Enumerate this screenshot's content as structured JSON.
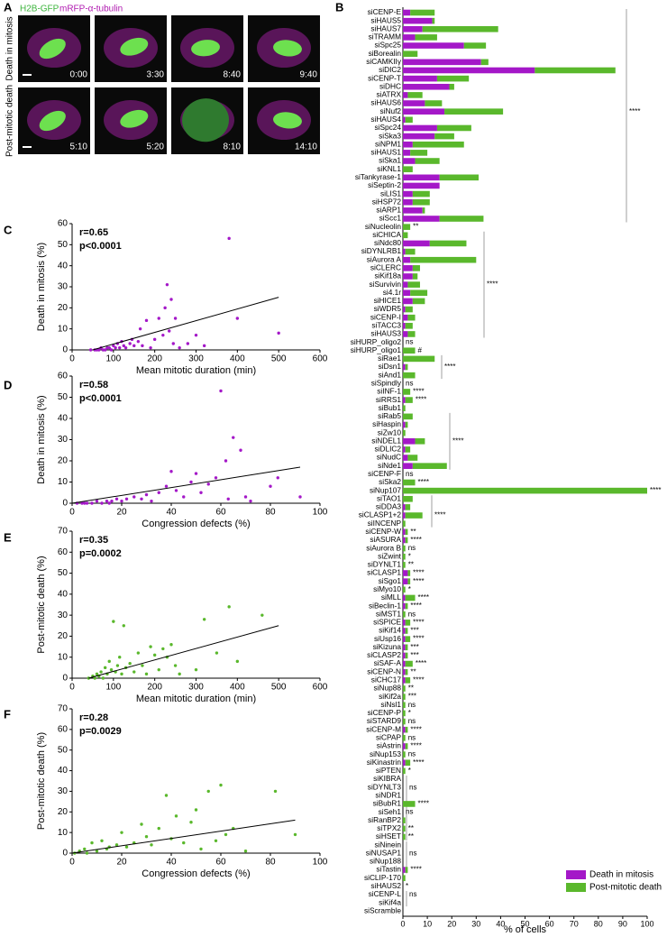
{
  "panel_labels": [
    "A",
    "B",
    "C",
    "D",
    "E",
    "F"
  ],
  "panel_a": {
    "channels": [
      "H2B-GFP",
      "mRFP-α-tubulin"
    ],
    "rows": [
      {
        "label": "Death in mitosis",
        "times": [
          "0:00",
          "3:30",
          "8:40",
          "9:40"
        ]
      },
      {
        "label": "Post-mitotic death",
        "times": [
          "5:10",
          "5:20",
          "8:10",
          "14:10"
        ]
      }
    ]
  },
  "chart_data": [
    {
      "type": "bar",
      "orientation": "horizontal",
      "stacked": true,
      "xlabel": "% of cells",
      "xlim": [
        0,
        100
      ],
      "xticks": [
        0,
        10,
        20,
        30,
        40,
        50,
        60,
        70,
        80,
        90,
        100
      ],
      "legend": "bottom-right",
      "categories": [
        "siCENP-E",
        "siHAUS5",
        "siHAUS7",
        "siTRAMM",
        "siSpc25",
        "siBorealin",
        "siCAMKIIγ",
        "siDIC2",
        "siCENP-T",
        "siDHC",
        "siATRX",
        "siHAUS6",
        "siNuf2",
        "siHAUS4",
        "siSpc24",
        "siSka3",
        "siNPM1",
        "siHAUS1",
        "siSka1",
        "siKNL1",
        "siTankyrase-1",
        "siSeptin-2",
        "siLIS1",
        "siHSP72",
        "siARP1",
        "siScc1",
        "siNucleolin",
        "siCHICA",
        "siNdc80",
        "siDYNLRB1",
        "siAurora A",
        "siCLERC",
        "siKif18a",
        "siSurvivin",
        "si4.1r",
        "siHICE1",
        "siWDR5",
        "siCENP-I",
        "siTACC3",
        "siHAUS3",
        "siHURP_oligo2",
        "siHURP_oligo1",
        "siRae1",
        "siDsn1",
        "siAnd1",
        "siSpindly",
        "siINF-1",
        "siRRS1",
        "siBub1",
        "siRab5",
        "siHaspin",
        "siZw10",
        "siNDEL1",
        "siDLIC2",
        "siNudC",
        "siNde1",
        "siCENP-F",
        "siSka2",
        "siNup107",
        "siTAO1",
        "siDDA3",
        "siCLASP1+2",
        "siINCENP",
        "siCENP-W",
        "siASURA",
        "siAurora B",
        "siZwint",
        "siDYNLT1",
        "siCLASP1",
        "siSgo1",
        "siMyo10",
        "siMLL",
        "siBeclin-1",
        "siMST1",
        "siSPICE",
        "siKif14",
        "siUsp16",
        "siKizuna",
        "siCLASP2",
        "siSAF-A",
        "siCENP-N",
        "siCHC17",
        "siNup88",
        "siKif2a",
        "siNsl1",
        "siCENP-P",
        "siSTARD9",
        "siCENP-M",
        "siCPAP",
        "siAstrin",
        "siNup153",
        "siKinastrin",
        "siPTEN",
        "siKIBRA",
        "siDYNLT3",
        "siNDR1",
        "siBubR1",
        "siSeh1",
        "siRanBP2",
        "siTPX2",
        "siHSET",
        "siNinein",
        "siNUSAP1",
        "siNup188",
        "siTastin",
        "siCLIP-170",
        "siHAUS2",
        "siCENP-L",
        "siKif4a",
        "siScramble"
      ],
      "series": [
        {
          "name": "Death in mitosis",
          "color": "#a418c8",
          "values": [
            3,
            12,
            8,
            5,
            25,
            0,
            32,
            54,
            14,
            19,
            2,
            9,
            17,
            1,
            14,
            13,
            4,
            3,
            5,
            0,
            15,
            15,
            4,
            4,
            8,
            15,
            0,
            0,
            11,
            1,
            3,
            4,
            4,
            2,
            3,
            4,
            1,
            2,
            1,
            2,
            0,
            0,
            0,
            1,
            0,
            0,
            0,
            1,
            0,
            0,
            1,
            0,
            5,
            1,
            2,
            4,
            0,
            0,
            0,
            0,
            1,
            1,
            0,
            1,
            1,
            0,
            0,
            0,
            2,
            2,
            0,
            1,
            1,
            0,
            1,
            1,
            1,
            1,
            1,
            1,
            1,
            1,
            0,
            0,
            0,
            0,
            0,
            1,
            0,
            1,
            0,
            1,
            0,
            0,
            0,
            0,
            0,
            0,
            0,
            0,
            0,
            0,
            0,
            0,
            1,
            0,
            0,
            0,
            0,
            0
          ]
        },
        {
          "name": "Post-mitotic death",
          "color": "#5ab82c",
          "values": [
            10,
            1,
            31,
            9,
            9,
            6,
            3,
            33,
            13,
            2,
            6,
            7,
            24,
            3,
            14,
            8,
            21,
            7,
            10,
            4,
            16,
            0,
            7,
            7,
            1,
            18,
            3,
            2,
            15,
            4,
            27,
            3,
            2,
            5,
            7,
            5,
            3,
            3,
            3,
            3,
            0,
            5,
            13,
            1,
            5,
            0,
            3,
            3,
            1,
            4,
            1,
            1,
            4,
            2,
            4,
            14,
            0,
            5,
            100,
            4,
            2,
            7,
            1,
            1,
            1,
            1,
            1,
            1,
            1,
            1,
            1,
            4,
            1,
            1,
            2,
            1,
            2,
            1,
            1,
            3,
            1,
            2,
            1,
            1,
            1,
            1,
            1,
            1,
            1,
            1,
            1,
            2,
            1,
            0,
            0,
            0,
            5,
            0,
            1,
            1,
            1,
            0,
            0,
            0,
            1,
            1,
            0,
            0,
            0,
            0
          ]
        }
      ],
      "annotations": [
        null,
        null,
        null,
        null,
        null,
        null,
        null,
        null,
        null,
        null,
        null,
        null,
        "****",
        null,
        null,
        null,
        null,
        null,
        null,
        null,
        null,
        null,
        null,
        null,
        null,
        null,
        "**",
        null,
        null,
        null,
        null,
        null,
        null,
        "****",
        null,
        null,
        null,
        null,
        null,
        null,
        "ns",
        "#",
        null,
        "****",
        null,
        "ns",
        "****",
        "****",
        null,
        null,
        null,
        null,
        "****",
        null,
        null,
        null,
        "ns",
        "****",
        "****",
        null,
        null,
        "****",
        null,
        "**",
        "****",
        "ns",
        "*",
        "**",
        "****",
        "****",
        "*",
        "****",
        "****",
        "ns",
        "****",
        "***",
        "****",
        "***",
        "***",
        "****",
        "**",
        "****",
        "**",
        "***",
        "ns",
        "*",
        "ns",
        "****",
        "ns",
        "****",
        "ns",
        "****",
        "*",
        null,
        "ns",
        null,
        "****",
        "ns",
        null,
        "**",
        "**",
        null,
        "ns",
        null,
        "****",
        null,
        "*",
        "ns",
        null,
        null
      ]
    },
    {
      "type": "scatter",
      "xlabel": "Mean mitotic duration (min)",
      "ylabel": "Death in mitosis (%)",
      "annotations": [
        "r=0.65",
        "p<0.0001"
      ],
      "color": "#a418c8",
      "x": [
        45,
        55,
        60,
        65,
        70,
        75,
        80,
        85,
        90,
        95,
        100,
        105,
        110,
        115,
        120,
        125,
        130,
        140,
        145,
        150,
        160,
        165,
        170,
        180,
        190,
        200,
        210,
        220,
        225,
        230,
        235,
        240,
        245,
        250,
        260,
        280,
        300,
        320,
        380,
        400,
        500
      ],
      "values": [
        0,
        0,
        0,
        0,
        1,
        0,
        0,
        1,
        1,
        0,
        2,
        1,
        3,
        1,
        4,
        2,
        1,
        3,
        5,
        2,
        4,
        10,
        2,
        14,
        1,
        5,
        15,
        7,
        20,
        31,
        9,
        24,
        3,
        15,
        1,
        3,
        7,
        2,
        53,
        15,
        8
      ],
      "fit": {
        "x": [
          50,
          500
        ],
        "values": [
          0,
          25
        ]
      },
      "xlim": [
        0,
        600
      ],
      "ylim": [
        0,
        60
      ],
      "xticks": [
        0,
        100,
        200,
        300,
        400,
        500,
        600
      ],
      "yticks": [
        0,
        10,
        20,
        30,
        40,
        50,
        60
      ]
    },
    {
      "type": "scatter",
      "xlabel": "Congression defects (%)",
      "ylabel": "Death in mitosis (%)",
      "annotations": [
        "r=0.58",
        "p<0.0001"
      ],
      "color": "#a418c8",
      "x": [
        2,
        4,
        5,
        6,
        8,
        10,
        12,
        14,
        15,
        16,
        18,
        20,
        22,
        25,
        28,
        30,
        32,
        35,
        38,
        40,
        42,
        45,
        48,
        50,
        52,
        55,
        58,
        60,
        62,
        63,
        65,
        68,
        70,
        72,
        80,
        83,
        92
      ],
      "values": [
        0,
        0,
        0,
        0,
        0,
        1,
        0,
        1,
        0,
        1,
        2,
        1,
        2,
        3,
        2,
        4,
        1,
        5,
        8,
        15,
        6,
        3,
        10,
        14,
        5,
        9,
        12,
        53,
        20,
        2,
        31,
        25,
        3,
        1,
        8,
        12,
        3
      ],
      "fit": {
        "x": [
          0,
          92
        ],
        "values": [
          0,
          17
        ]
      },
      "xlim": [
        0,
        100
      ],
      "ylim": [
        0,
        60
      ],
      "xticks": [
        0,
        20,
        40,
        60,
        80,
        100
      ],
      "yticks": [
        0,
        10,
        20,
        30,
        40,
        50,
        60
      ]
    },
    {
      "type": "scatter",
      "xlabel": "Mean mitotic duration (min)",
      "ylabel": "Post-mitotic death (%)",
      "annotations": [
        "r=0.35",
        "p=0.0002"
      ],
      "color": "#5ab82c",
      "x": [
        40,
        50,
        55,
        60,
        65,
        70,
        75,
        80,
        85,
        90,
        95,
        100,
        105,
        110,
        115,
        120,
        125,
        130,
        140,
        150,
        160,
        170,
        180,
        190,
        200,
        210,
        220,
        230,
        240,
        250,
        260,
        300,
        320,
        350,
        380,
        400,
        460
      ],
      "values": [
        0,
        1,
        0,
        2,
        1,
        3,
        0,
        5,
        2,
        8,
        4,
        27,
        3,
        6,
        10,
        2,
        25,
        5,
        7,
        3,
        12,
        6,
        2,
        15,
        11,
        4,
        14,
        10,
        16,
        6,
        2,
        4,
        28,
        12,
        34,
        8,
        30
      ],
      "fit": {
        "x": [
          40,
          500
        ],
        "values": [
          0,
          25
        ]
      },
      "xlim": [
        0,
        600
      ],
      "ylim": [
        0,
        70
      ],
      "xticks": [
        0,
        100,
        200,
        300,
        400,
        500,
        600
      ],
      "yticks": [
        0,
        10,
        20,
        30,
        40,
        50,
        60,
        70
      ]
    },
    {
      "type": "scatter",
      "xlabel": "Congression defects (%)",
      "ylabel": "Post-mitotic death (%)",
      "annotations": [
        "r=0.28",
        "p=0.0029"
      ],
      "color": "#5ab82c",
      "x": [
        1,
        3,
        5,
        6,
        8,
        10,
        12,
        14,
        15,
        18,
        20,
        22,
        25,
        28,
        30,
        32,
        35,
        38,
        40,
        42,
        45,
        48,
        50,
        52,
        55,
        58,
        60,
        62,
        65,
        70,
        82,
        90
      ],
      "values": [
        0,
        1,
        2,
        0,
        5,
        1,
        6,
        2,
        3,
        4,
        10,
        3,
        5,
        14,
        8,
        4,
        12,
        28,
        7,
        18,
        5,
        15,
        21,
        2,
        30,
        6,
        33,
        9,
        12,
        1,
        30,
        9
      ],
      "fit": {
        "x": [
          0,
          90
        ],
        "values": [
          0,
          16
        ]
      },
      "xlim": [
        0,
        100
      ],
      "ylim": [
        0,
        70
      ],
      "xticks": [
        0,
        20,
        40,
        60,
        80,
        100
      ],
      "yticks": [
        0,
        10,
        20,
        30,
        40,
        50,
        60,
        70
      ]
    }
  ]
}
